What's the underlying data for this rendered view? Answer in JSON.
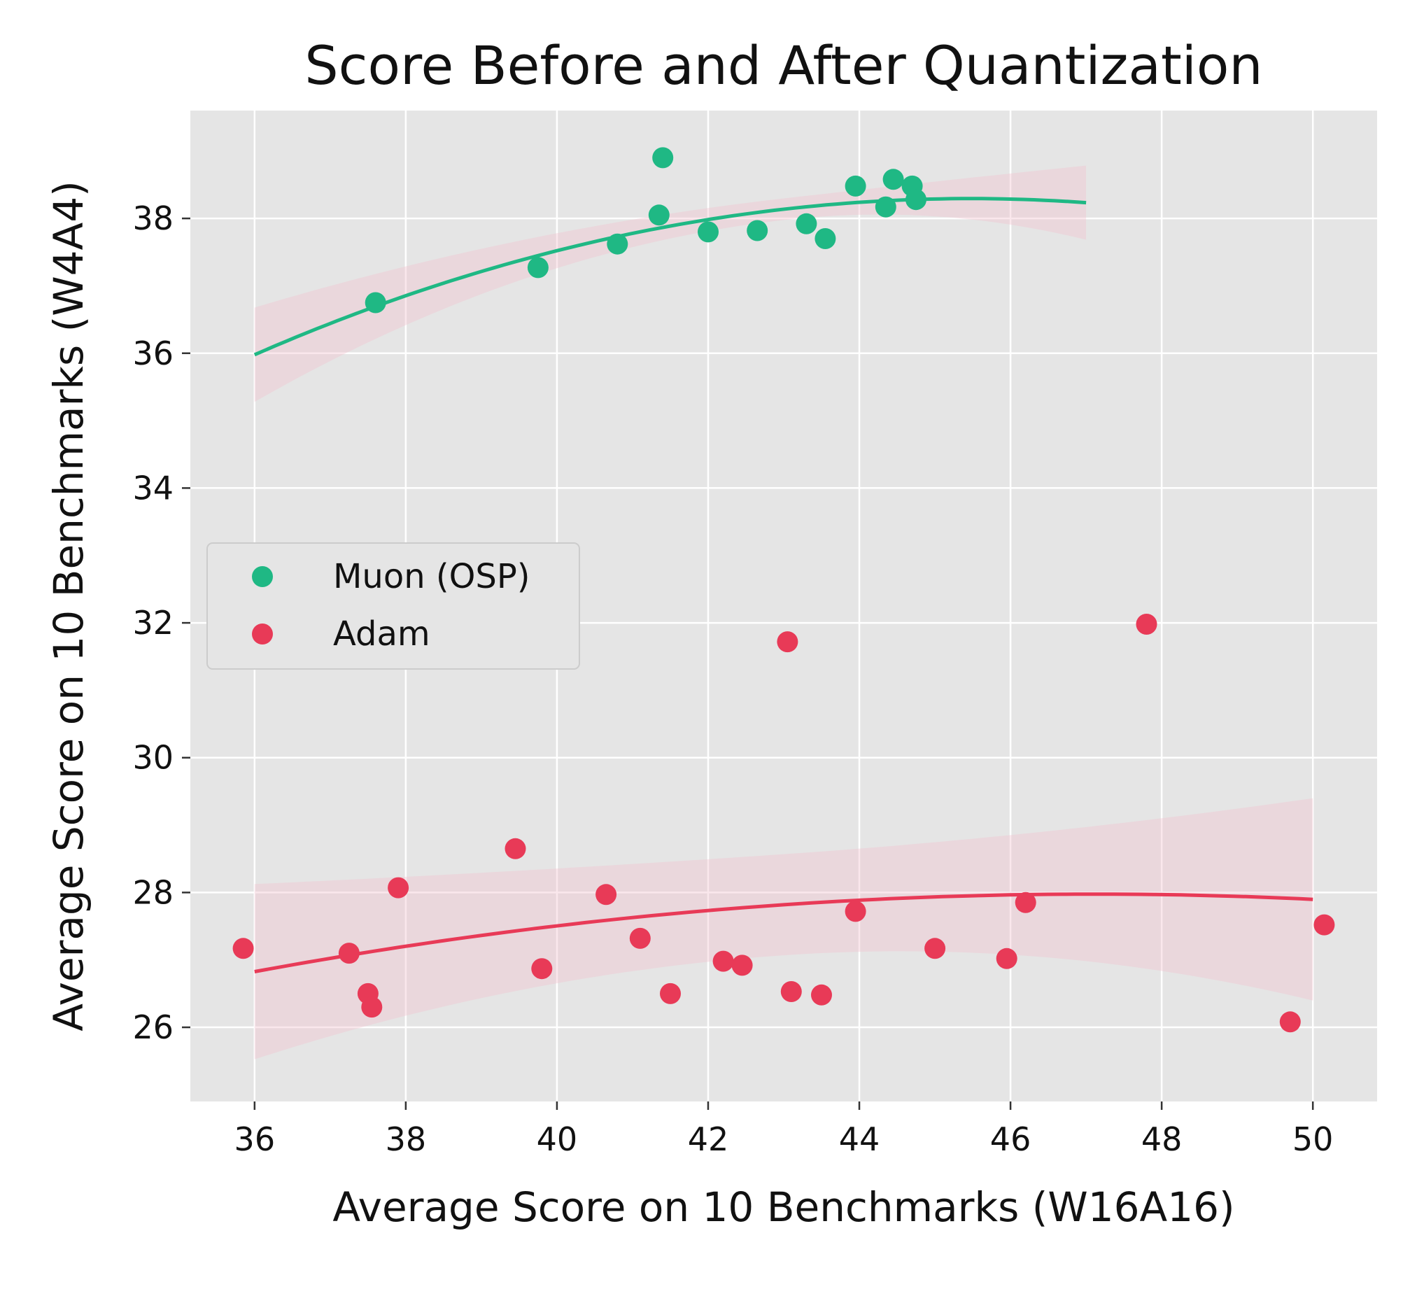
{
  "chart_data": {
    "type": "scatter",
    "title": "Score Before and After Quantization",
    "xlabel": "Average Score on 10 Benchmarks (W16A16)",
    "ylabel": "Average Score on 10 Benchmarks (W4A4)",
    "xlim": [
      35.15,
      50.85
    ],
    "ylim": [
      24.9,
      39.6
    ],
    "xticks": [
      36,
      38,
      40,
      42,
      44,
      46,
      48,
      50
    ],
    "yticks": [
      26,
      28,
      30,
      32,
      34,
      36,
      38
    ],
    "grid": true,
    "legend_position": "center-left",
    "background": "#e5e5e5",
    "series": [
      {
        "name": "Muon (OSP)",
        "color": "#1fb884",
        "points": [
          [
            37.6,
            36.75
          ],
          [
            39.75,
            37.27
          ],
          [
            40.8,
            37.62
          ],
          [
            41.35,
            38.05
          ],
          [
            41.4,
            38.9
          ],
          [
            42.0,
            37.8
          ],
          [
            42.65,
            37.82
          ],
          [
            43.3,
            37.92
          ],
          [
            43.55,
            37.7
          ],
          [
            43.95,
            38.48
          ],
          [
            44.35,
            38.17
          ],
          [
            44.45,
            38.58
          ],
          [
            44.7,
            38.48
          ],
          [
            44.75,
            38.28
          ]
        ],
        "trend": {
          "x_range": [
            36.0,
            47.0
          ],
          "coeffs": [
            -0.025818,
            2.348,
            -15.09
          ],
          "band_halfwidth_ends": [
            0.7,
            0.55
          ],
          "band_halfwidth_min": 0.16,
          "band_min_x": 43.0
        }
      },
      {
        "name": "Adam",
        "color": "#e83a57",
        "points": [
          [
            35.85,
            27.17
          ],
          [
            37.25,
            27.1
          ],
          [
            37.5,
            26.5
          ],
          [
            37.55,
            26.3
          ],
          [
            37.9,
            28.07
          ],
          [
            39.45,
            28.65
          ],
          [
            39.8,
            26.87
          ],
          [
            40.65,
            27.97
          ],
          [
            41.1,
            27.32
          ],
          [
            41.5,
            26.5
          ],
          [
            42.2,
            26.98
          ],
          [
            42.45,
            26.92
          ],
          [
            43.05,
            31.72
          ],
          [
            43.1,
            26.53
          ],
          [
            43.5,
            26.48
          ],
          [
            43.95,
            27.72
          ],
          [
            45.0,
            27.17
          ],
          [
            45.95,
            27.02
          ],
          [
            46.2,
            27.85
          ],
          [
            47.8,
            31.98
          ],
          [
            49.7,
            26.08
          ],
          [
            50.15,
            27.52
          ]
        ],
        "trend": {
          "x_range": [
            36.0,
            50.0
          ],
          "coeffs": [
            -0.00932,
            0.87816,
            7.2904
          ],
          "band_halfwidth_ends": [
            1.3,
            1.5
          ],
          "band_halfwidth_min": 0.75,
          "band_min_x": 43.0
        }
      }
    ]
  }
}
